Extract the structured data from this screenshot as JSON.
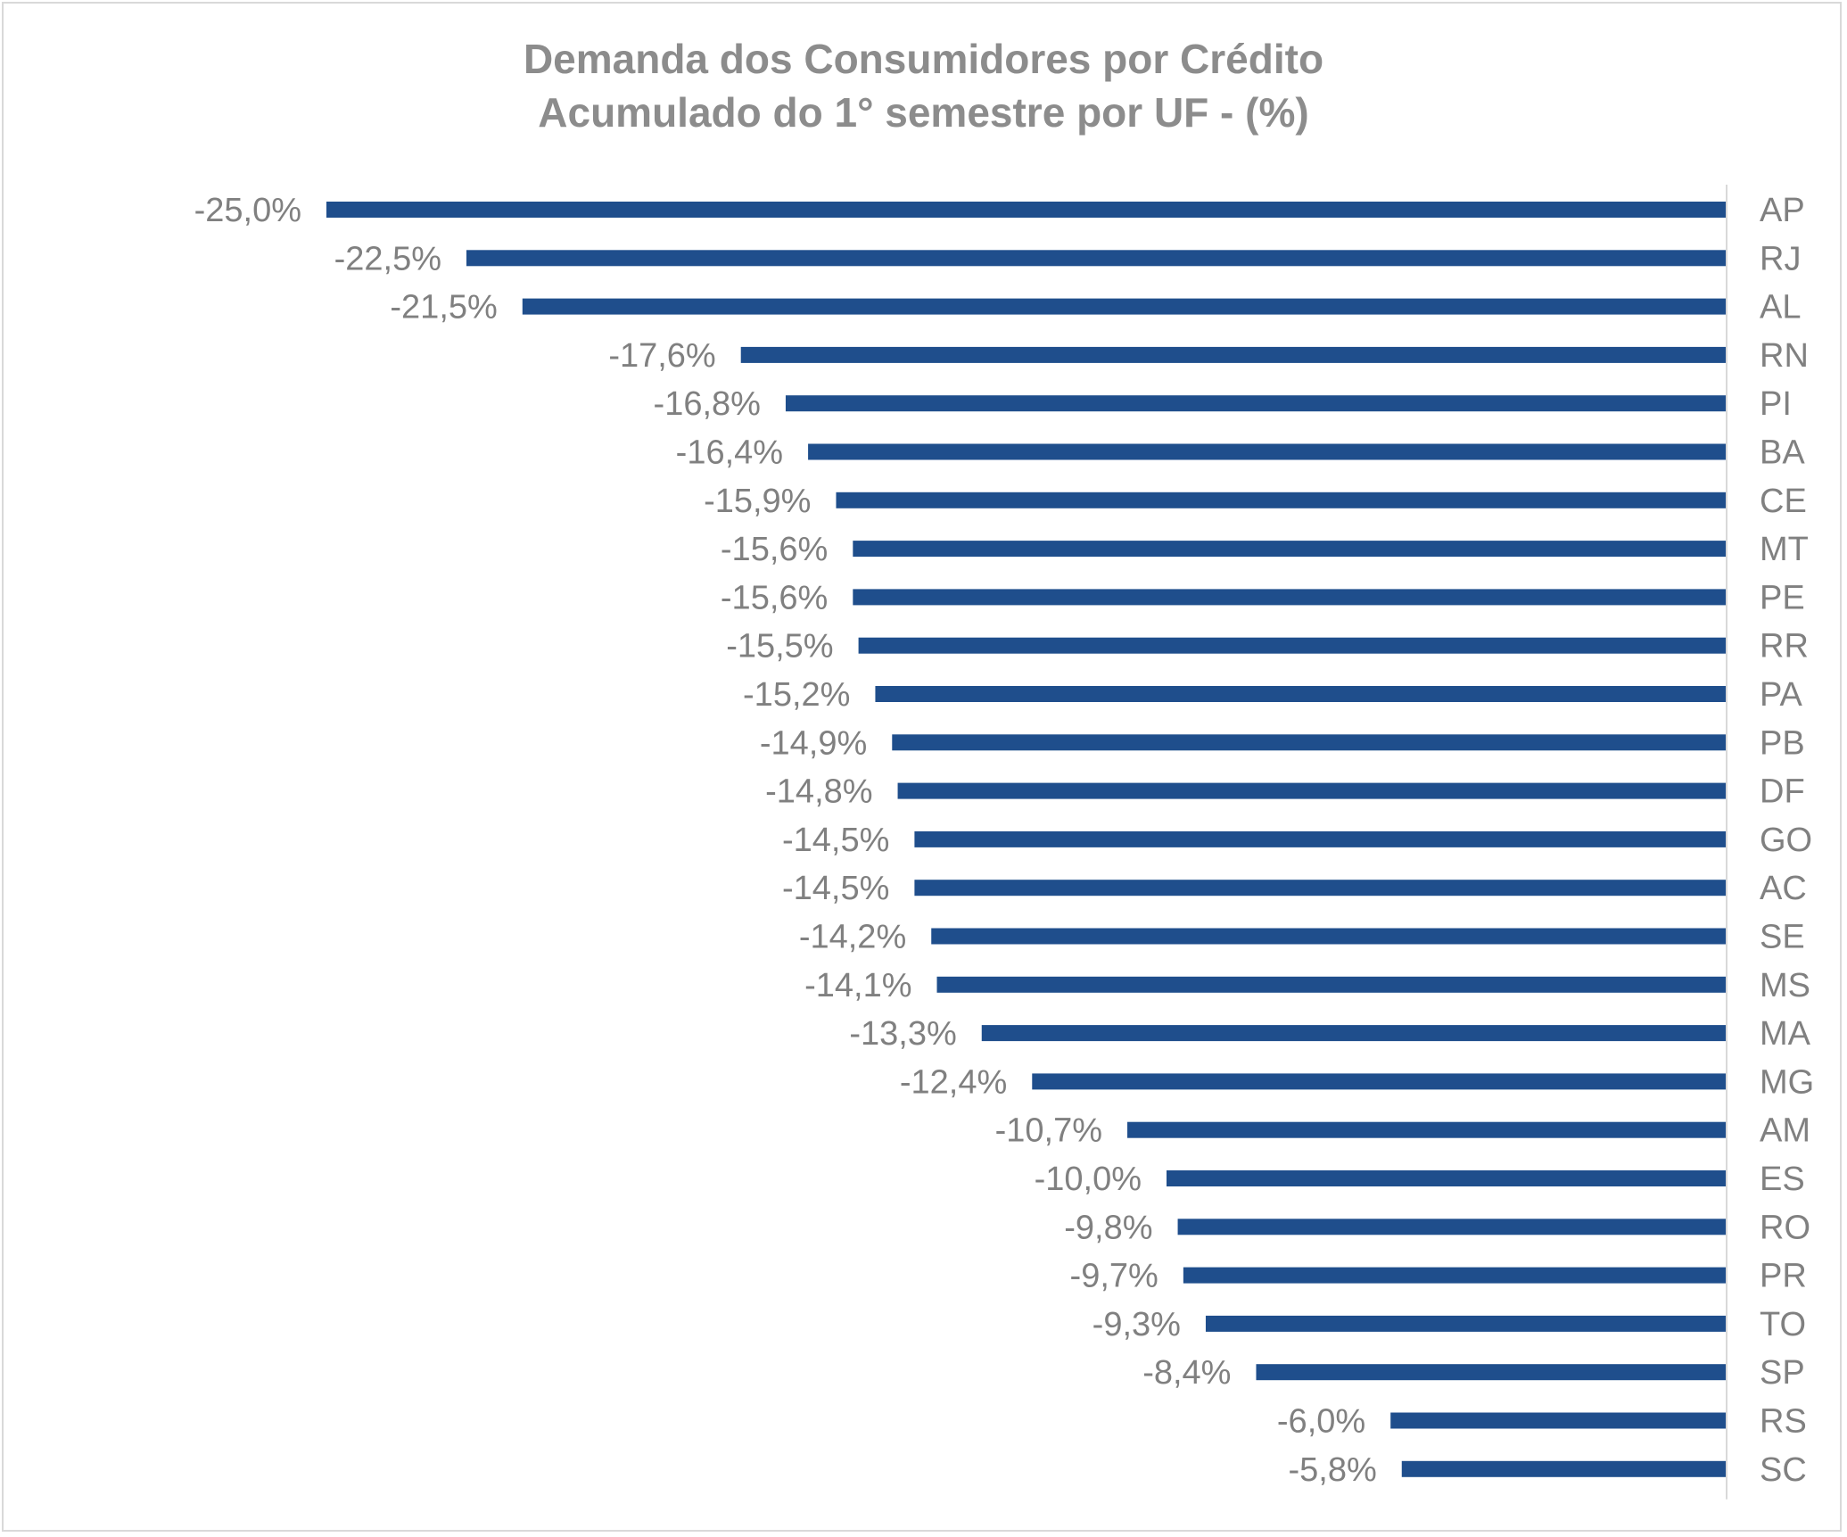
{
  "chart_data": {
    "type": "bar",
    "orientation": "horizontal",
    "title": "Demanda dos Consumidores por Crédito",
    "subtitle": "Acumulado do 1° semestre por UF - (%)",
    "xlabel": "",
    "ylabel": "",
    "xlim": [
      -25.0,
      0
    ],
    "grid": false,
    "legend": "none",
    "categories": [
      "AP",
      "RJ",
      "AL",
      "RN",
      "PI",
      "BA",
      "CE",
      "MT",
      "PE",
      "RR",
      "PA",
      "PB",
      "DF",
      "GO",
      "AC",
      "SE",
      "MS",
      "MA",
      "MG",
      "AM",
      "ES",
      "RO",
      "PR",
      "TO",
      "SP",
      "RS",
      "SC"
    ],
    "values": [
      -25.0,
      -22.5,
      -21.5,
      -17.6,
      -16.8,
      -16.4,
      -15.9,
      -15.6,
      -15.6,
      -15.5,
      -15.2,
      -14.9,
      -14.8,
      -14.5,
      -14.5,
      -14.2,
      -14.1,
      -13.3,
      -12.4,
      -10.7,
      -10.0,
      -9.8,
      -9.7,
      -9.3,
      -8.4,
      -6.0,
      -5.8
    ],
    "data_labels": [
      "-25,0%",
      "-22,5%",
      "-21,5%",
      "-17,6%",
      "-16,8%",
      "-16,4%",
      "-15,9%",
      "-15,6%",
      "-15,6%",
      "-15,5%",
      "-15,2%",
      "-14,9%",
      "-14,8%",
      "-14,5%",
      "-14,5%",
      "-14,2%",
      "-14,1%",
      "-13,3%",
      "-12,4%",
      "-10,7%",
      "-10,0%",
      "-9,8%",
      "-9,7%",
      "-9,3%",
      "-8,4%",
      "-6,0%",
      "-5,8%"
    ],
    "colors": {
      "bar": "#1f4e8c",
      "text": "#808080",
      "title": "#8c8c8c",
      "axis": "#d9d9d9",
      "frame": "#d9d9d9"
    }
  }
}
